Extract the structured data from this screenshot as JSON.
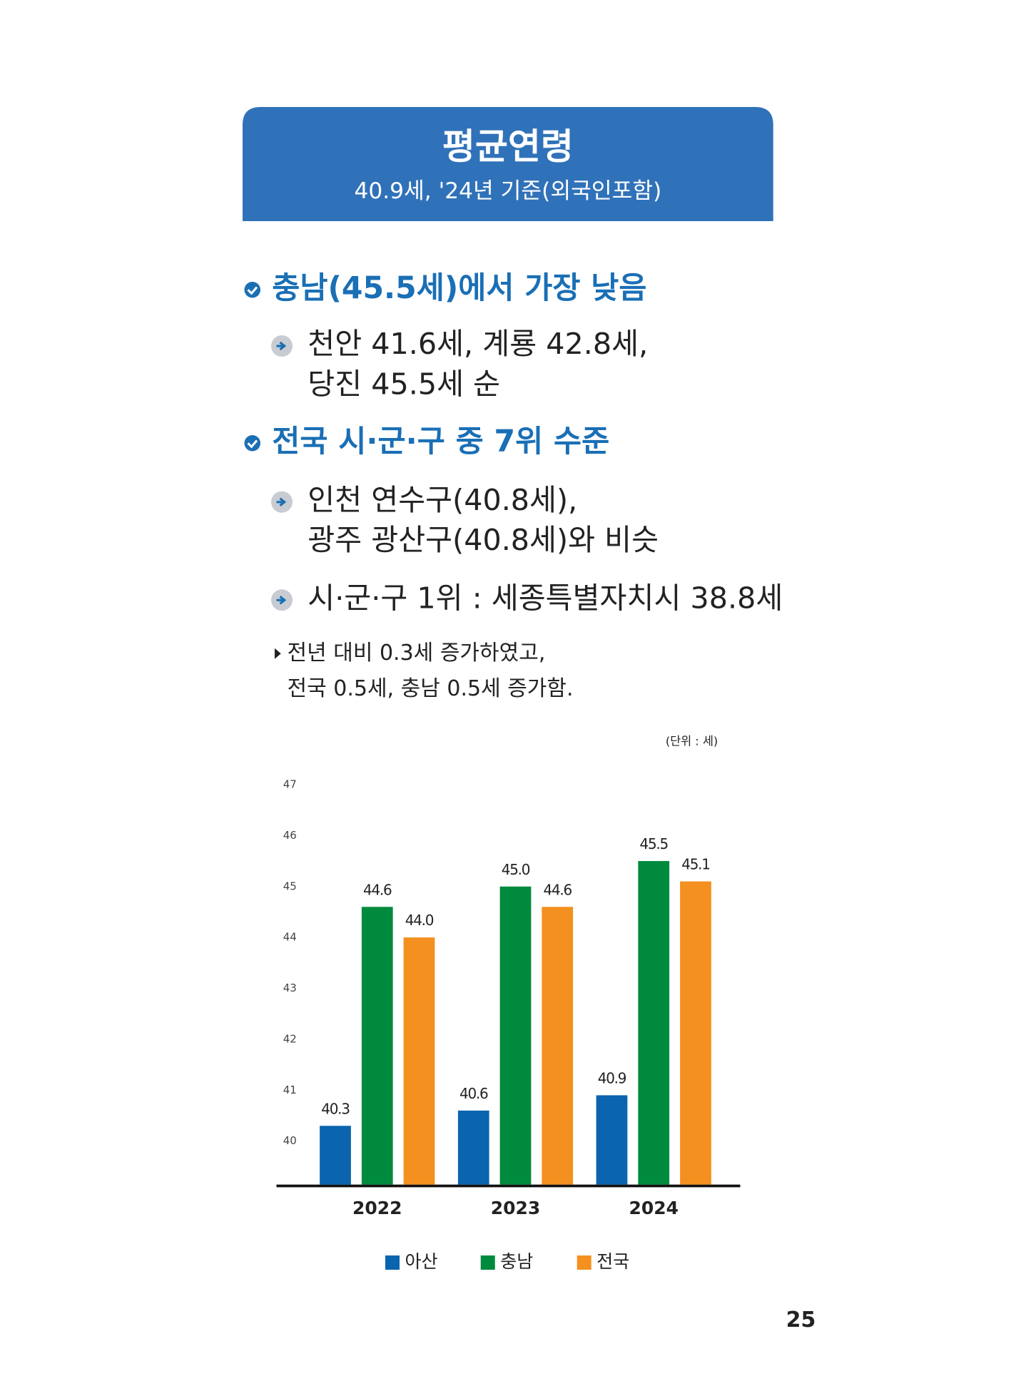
{
  "header": {
    "title": "평균연령",
    "subtitle": "40.9세, '24년 기준(외국인포함)"
  },
  "sections": [
    {
      "heading": "충남(45.5세)에서 가장 낮음",
      "items": [
        {
          "lines": [
            "천안 41.6세, 계룡 42.8세,",
            "당진 45.5세 순"
          ]
        }
      ]
    },
    {
      "heading": "전국 시·군·구 중 7위 수준",
      "items": [
        {
          "lines": [
            "인천 연수구(40.8세),",
            "광주 광산구(40.8세)와 비슷"
          ]
        },
        {
          "lines": [
            "시·군·구 1위 : 세종특별자치시 38.8세"
          ]
        }
      ]
    }
  ],
  "note": {
    "lines": [
      "전년 대비 0.3세 증가하였고,",
      "전국 0.5세, 충남 0.5세 증가함."
    ]
  },
  "chart_data": {
    "type": "bar",
    "unit": "(단위 : 세)",
    "categories": [
      "2022",
      "2023",
      "2024"
    ],
    "series": [
      {
        "name": "아산",
        "color": "#0a64ae",
        "values": [
          40.3,
          40.6,
          40.9
        ],
        "value_labels": [
          "40.3",
          "40.6",
          "40.9"
        ]
      },
      {
        "name": "충남",
        "color": "#008a3e",
        "values": [
          44.6,
          45.0,
          45.5
        ],
        "value_labels": [
          "44.6",
          "45.0",
          "45.5"
        ]
      },
      {
        "name": "전국",
        "color": "#f39020",
        "values": [
          44.0,
          44.6,
          45.1
        ],
        "value_labels": [
          "44.0",
          "44.6",
          "45.1"
        ]
      }
    ],
    "ylim": [
      39.12,
      47
    ],
    "yticks": [
      40,
      41,
      42,
      43,
      44,
      45,
      46,
      47
    ],
    "grid": false,
    "legend": "bottom"
  },
  "page_number": "25"
}
